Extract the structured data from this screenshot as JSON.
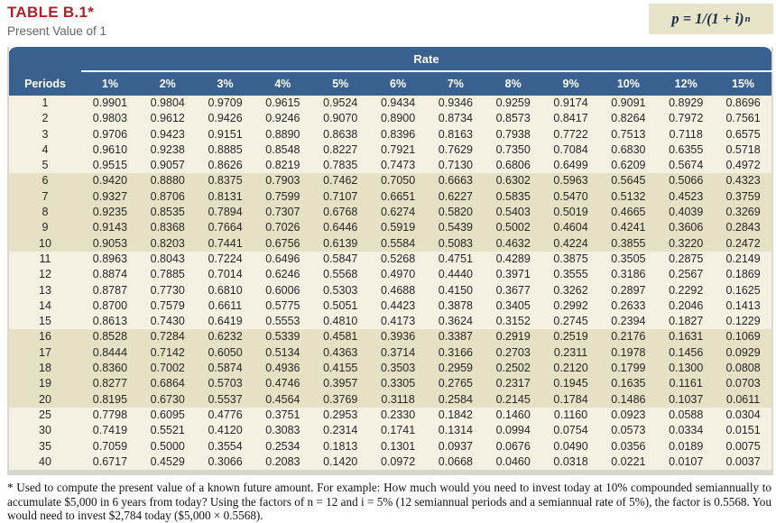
{
  "title": "TABLE B.1*",
  "subtitle": "Present Value of 1",
  "formula": {
    "body": "p = 1/(1 + i)",
    "exponent": "n"
  },
  "table": {
    "group_header": "Rate",
    "row_header": "Periods",
    "columns": [
      "1%",
      "2%",
      "3%",
      "4%",
      "5%",
      "6%",
      "7%",
      "8%",
      "9%",
      "10%",
      "12%",
      "15%"
    ],
    "rows": [
      {
        "period": "1",
        "values": [
          "0.9901",
          "0.9804",
          "0.9709",
          "0.9615",
          "0.9524",
          "0.9434",
          "0.9346",
          "0.9259",
          "0.9174",
          "0.9091",
          "0.8929",
          "0.8696"
        ]
      },
      {
        "period": "2",
        "values": [
          "0.9803",
          "0.9612",
          "0.9426",
          "0.9246",
          "0.9070",
          "0.8900",
          "0.8734",
          "0.8573",
          "0.8417",
          "0.8264",
          "0.7972",
          "0.7561"
        ]
      },
      {
        "period": "3",
        "values": [
          "0.9706",
          "0.9423",
          "0.9151",
          "0.8890",
          "0.8638",
          "0.8396",
          "0.8163",
          "0.7938",
          "0.7722",
          "0.7513",
          "0.7118",
          "0.6575"
        ]
      },
      {
        "period": "4",
        "values": [
          "0.9610",
          "0.9238",
          "0.8885",
          "0.8548",
          "0.8227",
          "0.7921",
          "0.7629",
          "0.7350",
          "0.7084",
          "0.6830",
          "0.6355",
          "0.5718"
        ]
      },
      {
        "period": "5",
        "values": [
          "0.9515",
          "0.9057",
          "0.8626",
          "0.8219",
          "0.7835",
          "0.7473",
          "0.7130",
          "0.6806",
          "0.6499",
          "0.6209",
          "0.5674",
          "0.4972"
        ]
      },
      {
        "period": "6",
        "values": [
          "0.9420",
          "0.8880",
          "0.8375",
          "0.7903",
          "0.7462",
          "0.7050",
          "0.6663",
          "0.6302",
          "0.5963",
          "0.5645",
          "0.5066",
          "0.4323"
        ]
      },
      {
        "period": "7",
        "values": [
          "0.9327",
          "0.8706",
          "0.8131",
          "0.7599",
          "0.7107",
          "0.6651",
          "0.6227",
          "0.5835",
          "0.5470",
          "0.5132",
          "0.4523",
          "0.3759"
        ]
      },
      {
        "period": "8",
        "values": [
          "0.9235",
          "0.8535",
          "0.7894",
          "0.7307",
          "0.6768",
          "0.6274",
          "0.5820",
          "0.5403",
          "0.5019",
          "0.4665",
          "0.4039",
          "0.3269"
        ]
      },
      {
        "period": "9",
        "values": [
          "0.9143",
          "0.8368",
          "0.7664",
          "0.7026",
          "0.6446",
          "0.5919",
          "0.5439",
          "0.5002",
          "0.4604",
          "0.4241",
          "0.3606",
          "0.2843"
        ]
      },
      {
        "period": "10",
        "values": [
          "0.9053",
          "0.8203",
          "0.7441",
          "0.6756",
          "0.6139",
          "0.5584",
          "0.5083",
          "0.4632",
          "0.4224",
          "0.3855",
          "0.3220",
          "0.2472"
        ]
      },
      {
        "period": "11",
        "values": [
          "0.8963",
          "0.8043",
          "0.7224",
          "0.6496",
          "0.5847",
          "0.5268",
          "0.4751",
          "0.4289",
          "0.3875",
          "0.3505",
          "0.2875",
          "0.2149"
        ]
      },
      {
        "period": "12",
        "values": [
          "0.8874",
          "0.7885",
          "0.7014",
          "0.6246",
          "0.5568",
          "0.4970",
          "0.4440",
          "0.3971",
          "0.3555",
          "0.3186",
          "0.2567",
          "0.1869"
        ]
      },
      {
        "period": "13",
        "values": [
          "0.8787",
          "0.7730",
          "0.6810",
          "0.6006",
          "0.5303",
          "0.4688",
          "0.4150",
          "0.3677",
          "0.3262",
          "0.2897",
          "0.2292",
          "0.1625"
        ]
      },
      {
        "period": "14",
        "values": [
          "0.8700",
          "0.7579",
          "0.6611",
          "0.5775",
          "0.5051",
          "0.4423",
          "0.3878",
          "0.3405",
          "0.2992",
          "0.2633",
          "0.2046",
          "0.1413"
        ]
      },
      {
        "period": "15",
        "values": [
          "0.8613",
          "0.7430",
          "0.6419",
          "0.5553",
          "0.4810",
          "0.4173",
          "0.3624",
          "0.3152",
          "0.2745",
          "0.2394",
          "0.1827",
          "0.1229"
        ]
      },
      {
        "period": "16",
        "values": [
          "0.8528",
          "0.7284",
          "0.6232",
          "0.5339",
          "0.4581",
          "0.3936",
          "0.3387",
          "0.2919",
          "0.2519",
          "0.2176",
          "0.1631",
          "0.1069"
        ]
      },
      {
        "period": "17",
        "values": [
          "0.8444",
          "0.7142",
          "0.6050",
          "0.5134",
          "0.4363",
          "0.3714",
          "0.3166",
          "0.2703",
          "0.2311",
          "0.1978",
          "0.1456",
          "0.0929"
        ]
      },
      {
        "period": "18",
        "values": [
          "0.8360",
          "0.7002",
          "0.5874",
          "0.4936",
          "0.4155",
          "0.3503",
          "0.2959",
          "0.2502",
          "0.2120",
          "0.1799",
          "0.1300",
          "0.0808"
        ]
      },
      {
        "period": "19",
        "values": [
          "0.8277",
          "0.6864",
          "0.5703",
          "0.4746",
          "0.3957",
          "0.3305",
          "0.2765",
          "0.2317",
          "0.1945",
          "0.1635",
          "0.1161",
          "0.0703"
        ]
      },
      {
        "period": "20",
        "values": [
          "0.8195",
          "0.6730",
          "0.5537",
          "0.4564",
          "0.3769",
          "0.3118",
          "0.2584",
          "0.2145",
          "0.1784",
          "0.1486",
          "0.1037",
          "0.0611"
        ]
      },
      {
        "period": "25",
        "values": [
          "0.7798",
          "0.6095",
          "0.4776",
          "0.3751",
          "0.2953",
          "0.2330",
          "0.1842",
          "0.1460",
          "0.1160",
          "0.0923",
          "0.0588",
          "0.0304"
        ]
      },
      {
        "period": "30",
        "values": [
          "0.7419",
          "0.5521",
          "0.4120",
          "0.3083",
          "0.2314",
          "0.1741",
          "0.1314",
          "0.0994",
          "0.0754",
          "0.0573",
          "0.0334",
          "0.0151"
        ]
      },
      {
        "period": "35",
        "values": [
          "0.7059",
          "0.5000",
          "0.3554",
          "0.2534",
          "0.1813",
          "0.1301",
          "0.0937",
          "0.0676",
          "0.0490",
          "0.0356",
          "0.0189",
          "0.0075"
        ]
      },
      {
        "period": "40",
        "values": [
          "0.6717",
          "0.4529",
          "0.3066",
          "0.2083",
          "0.1420",
          "0.0972",
          "0.0668",
          "0.0460",
          "0.0318",
          "0.0221",
          "0.0107",
          "0.0037"
        ]
      }
    ]
  },
  "footnote": "* Used to compute the present value of a known future amount. For example: How much would you need to invest today at 10% compounded semiannually to accumulate $5,000 in 6 years from today? Using the factors of n = 12 and i = 5% (12 semiannual periods and a semiannual rate of 5%), the factor is 0.5568. You would need to invest $2,784 today ($5,000 × 0.5568).",
  "colors": {
    "header_blue": "#39618f",
    "band_light": "#f4f1e3",
    "band_tan": "#e6e0c4",
    "title_red": "#b01f2b",
    "formula_box_bg": "#e8e4c9"
  }
}
